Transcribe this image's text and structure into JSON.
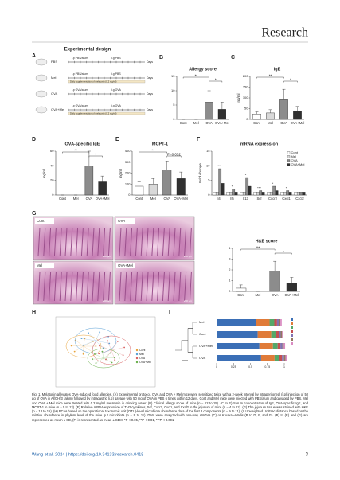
{
  "header": {
    "journal": "Research"
  },
  "figure": {
    "panel_a": {
      "label": "A",
      "title": "Experimental design",
      "groups": [
        "PBS",
        "Mel",
        "OVA",
        "OVA+Mel"
      ],
      "steps": [
        "i.p PBS/alum",
        "i.g PBS",
        "i.p OVA/alum",
        "i.g OVA"
      ],
      "days_label": "Days",
      "supplement": "Daily supplementation of melatonin (0.2 mg/ml)"
    },
    "panel_g": {
      "label": "G",
      "images": [
        "Cont",
        "OVA",
        "Mel",
        "OVA+Mel"
      ],
      "scale": "200 μm"
    },
    "panel_h": {
      "label": "H",
      "legend": [
        "Cont",
        "Mel",
        "OVA",
        "OVA+Mel"
      ]
    },
    "panel_i": {
      "label": "I",
      "samples": [
        "Mel",
        "Cont",
        "OVA+Mel",
        "OVA"
      ],
      "xticks": [
        "0",
        "0.25",
        "0.5",
        "0.75",
        "1"
      ]
    }
  },
  "chart_data": [
    {
      "type": "bar",
      "label": "B",
      "title": "Allergy score",
      "categories": [
        "Cont",
        "Mel",
        "OVA",
        "OVA+Mel"
      ],
      "values": [
        0,
        0,
        6,
        3.5
      ],
      "errors": [
        0,
        0,
        4,
        2.5
      ],
      "colors": [
        "#ffffff",
        "#d9d9d9",
        "#8c8c8c",
        "#303030"
      ],
      "ylim": [
        0,
        15
      ],
      "yticks": [
        0,
        5,
        10,
        15
      ],
      "annotations": [
        "**",
        "*"
      ]
    },
    {
      "type": "bar",
      "label": "C",
      "title": "IgE",
      "y_label": "ng/ml",
      "categories": [
        "Cont",
        "Mel",
        "OVA",
        "OVA+Mel"
      ],
      "values": [
        25,
        30,
        95,
        40
      ],
      "errors": [
        10,
        15,
        45,
        20
      ],
      "colors": [
        "#ffffff",
        "#d9d9d9",
        "#8c8c8c",
        "#303030"
      ],
      "ylim": [
        0,
        200
      ],
      "yticks": [
        0,
        50,
        100,
        150,
        200
      ],
      "annotations": [
        "**",
        "*"
      ]
    },
    {
      "type": "bar",
      "label": "D",
      "title": "OVA-specific IgE",
      "y_label": "ng/ml",
      "categories": [
        "Cont",
        "Mel",
        "OVA",
        "OVA+Mel"
      ],
      "values": [
        0,
        0,
        40,
        18
      ],
      "errors": [
        0,
        0,
        20,
        8
      ],
      "colors": [
        "#ffffff",
        "#d9d9d9",
        "#8c8c8c",
        "#303030"
      ],
      "ylim": [
        0,
        60
      ],
      "yticks": [
        0,
        20,
        40,
        60
      ],
      "annotations": [
        "**",
        "*"
      ]
    },
    {
      "type": "bar",
      "label": "E",
      "title": "MCPT-1",
      "y_label": "ng/ml",
      "categories": [
        "Cont",
        "Mel",
        "OVA",
        "OVA+Mel"
      ],
      "values": [
        80,
        100,
        230,
        150
      ],
      "errors": [
        40,
        50,
        80,
        60
      ],
      "colors": [
        "#ffffff",
        "#d9d9d9",
        "#8c8c8c",
        "#303030"
      ],
      "ylim": [
        0,
        400
      ],
      "yticks": [
        0,
        100,
        200,
        300,
        400
      ],
      "annotations": [
        "**",
        "P=0.052"
      ]
    },
    {
      "type": "grouped",
      "label": "F",
      "title": "mRNA expression",
      "y_label": "Fold change",
      "categories": [
        "Il4",
        "Il5",
        "Il13",
        "Scf",
        "Cxcr2",
        "Cxcl1",
        "Cxcl2"
      ],
      "series": [
        {
          "name": "Cont",
          "color": "#ffffff",
          "values": [
            1,
            1,
            1,
            1,
            1,
            1,
            1
          ]
        },
        {
          "name": "Mel",
          "color": "#d9d9d9",
          "values": [
            1,
            1,
            1,
            1,
            1,
            1,
            1
          ]
        },
        {
          "name": "OVA",
          "color": "#8c8c8c",
          "values": [
            9,
            2,
            6,
            1.5,
            3,
            1.5,
            1
          ]
        },
        {
          "name": "OVA+Mel",
          "color": "#303030",
          "values": [
            4,
            1,
            3,
            1,
            1.5,
            1,
            1
          ]
        }
      ],
      "ylim": [
        0,
        15
      ],
      "yticks": [
        0,
        5,
        10,
        15
      ],
      "annotations": [
        "***",
        "*",
        "*",
        "***",
        "*",
        "*"
      ]
    },
    {
      "type": "bar",
      "title": "H&E score",
      "categories": [
        "Cont",
        "Mel",
        "OVA",
        "OVA+Mel"
      ],
      "values": [
        0.3,
        0,
        1.9,
        0.8
      ],
      "errors": [
        0.3,
        0,
        0.9,
        0.5
      ],
      "colors": [
        "#ffffff",
        "#d9d9d9",
        "#8c8c8c",
        "#303030"
      ],
      "ylim": [
        0,
        4
      ],
      "yticks": [
        0,
        1,
        2,
        3,
        4
      ],
      "annotations": [
        "***",
        "*"
      ]
    }
  ],
  "caption": "Fig. 1. Melatonin alleviates OVA-induced food allergies. (A) Experimental protocol. OVA and OVA + Mel mice were sensitized twice with a 2-week interval by intraperitoneal (i.p) injection of 50 μg of OVA in Al(OH)3 (alum) followed by intragastric (i.g) gavage with 50 mg of OVA in PBS 6 times within 12 days. Cont and Mel mice were injected with PBS/alum and gavaged by PBS. Mel and OVA + Mel mice were treated with 0.2 mg/ml melatonin in drinking water. (B) Clinical allergy score of mice (n = 12 to 15). (C to E) Serum concentration of IgE, OVA-specific IgE, and MCPT-1 in mice (n = 5 to 13). (F) Relative mRNA expression of TH2 cytokines, Scf, Cxcr2, Cxcl1, and Cxcl2 in the jejunum of mice (n = 4 to 12). (G) The jejunum tissue was stained with H&E (n = 13 to 15). (H) PCoA based on the operational taxonomic unit (OTU)-level microbiota abundance data of the first 2 components (n = 9 to 11). (I) Unweighted UniFrac distance based on the relative abundance in phylum level of the mice gut microbiota (n = 9 to 11). Data were analyzed with one-way ANOVA (C) or Kruskal–Wallis (B to D, F, and G). (B) to (E) and (G) are represented as mean ± SD, (F) is represented as mean ± SEM. *P < 0.05, **P < 0.01, ***P < 0.001.",
  "footer": {
    "citation": "Wang et al. 2024 | https://doi.org/10.34133/research.0418",
    "page": "3"
  }
}
